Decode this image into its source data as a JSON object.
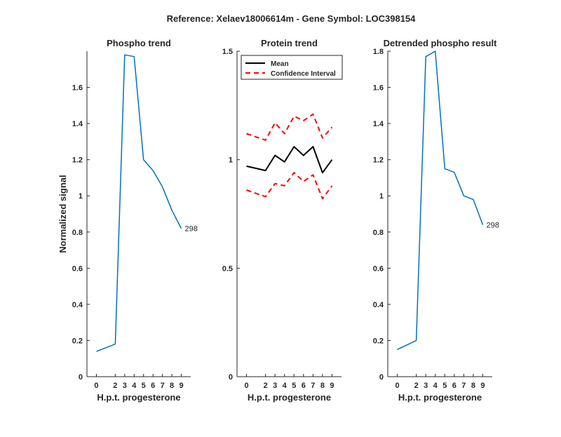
{
  "figure": {
    "title": "Reference:  Xelaev18006614m - Gene Symbol:  LOC398154"
  },
  "colors": {
    "series_blue": "#0072BD",
    "mean": "#000000",
    "ci": "#FF0000",
    "axis": "#262626"
  },
  "chart_data": [
    {
      "type": "line",
      "title": "Phospho trend",
      "xlabel": "H.p.t. progesterone",
      "ylabel": "Normalized signal",
      "x_ticks": [
        0,
        2,
        3,
        4,
        5,
        6,
        7,
        8,
        9
      ],
      "y_ticks": [
        0,
        0.2,
        0.4,
        0.6,
        0.8,
        1,
        1.2,
        1.4,
        1.6
      ],
      "y_tick_labels": [
        "0",
        "0.2",
        "0.4",
        "0.6",
        "0.8",
        "1",
        "1.2",
        "1.4",
        "1.6"
      ],
      "ylim": [
        0,
        1.8
      ],
      "grid": false,
      "series": [
        {
          "x": [
            0,
            2,
            3,
            4,
            5,
            6,
            7,
            8,
            9
          ],
          "y": [
            0.14,
            0.18,
            1.78,
            1.77,
            1.2,
            1.14,
            1.05,
            0.92,
            0.82
          ],
          "end_label": "298",
          "color": "#0072BD",
          "style": "solid"
        }
      ]
    },
    {
      "type": "line",
      "title": "Protein trend",
      "xlabel": "H.p.t. progesterone",
      "ylabel": "",
      "x_ticks": [
        0,
        2,
        3,
        4,
        5,
        6,
        7,
        8,
        9
      ],
      "y_ticks": [
        0,
        0.5,
        1,
        1.5
      ],
      "y_tick_labels": [
        "0",
        "0.5",
        "1",
        "1.5"
      ],
      "ylim": [
        0,
        1.5
      ],
      "grid": false,
      "legend_position": "top-left",
      "series": [
        {
          "name": "Mean",
          "x": [
            0,
            2,
            3,
            4,
            5,
            6,
            7,
            8,
            9
          ],
          "y": [
            0.97,
            0.95,
            1.02,
            0.99,
            1.06,
            1.02,
            1.06,
            0.94,
            1.0
          ],
          "color": "#000000",
          "style": "solid"
        },
        {
          "name": "Confidence Interval",
          "x": [
            0,
            2,
            3,
            4,
            5,
            6,
            7,
            8,
            9
          ],
          "y": [
            1.12,
            1.09,
            1.17,
            1.12,
            1.2,
            1.18,
            1.21,
            1.1,
            1.15
          ],
          "color": "#FF0000",
          "style": "dashed"
        },
        {
          "x": [
            0,
            2,
            3,
            4,
            5,
            6,
            7,
            8,
            9
          ],
          "y": [
            0.86,
            0.83,
            0.89,
            0.88,
            0.94,
            0.9,
            0.93,
            0.82,
            0.88
          ],
          "color": "#FF0000",
          "style": "dashed"
        }
      ]
    },
    {
      "type": "line",
      "title": "Detrended phospho result",
      "xlabel": "H.p.t. progesterone",
      "ylabel": "",
      "x_ticks": [
        0,
        2,
        3,
        4,
        5,
        6,
        7,
        8,
        9
      ],
      "y_ticks": [
        0,
        0.2,
        0.4,
        0.6,
        0.8,
        1,
        1.2,
        1.4,
        1.6,
        1.8
      ],
      "y_tick_labels": [
        "0",
        "0.2",
        "0.4",
        "0.6",
        "0.8",
        "1",
        "1.2",
        "1.4",
        "1.6",
        "1.8"
      ],
      "ylim": [
        0,
        1.8
      ],
      "grid": false,
      "series": [
        {
          "x": [
            0,
            2,
            3,
            4,
            5,
            6,
            7,
            8,
            9
          ],
          "y": [
            0.15,
            0.2,
            1.77,
            1.8,
            1.15,
            1.13,
            1.0,
            0.98,
            0.84
          ],
          "end_label": "298",
          "color": "#0072BD",
          "style": "solid"
        }
      ]
    }
  ]
}
